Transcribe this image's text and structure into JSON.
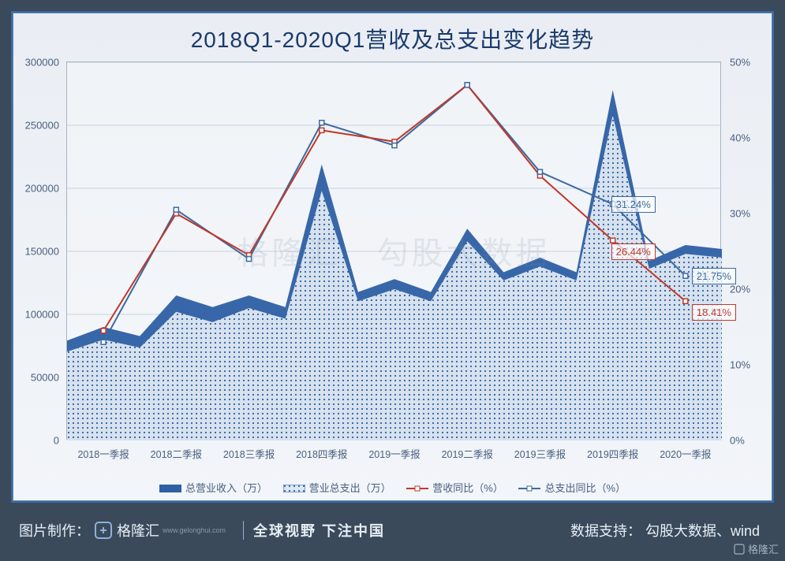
{
  "title": "2018Q1-2020Q1营收及总支出变化趋势",
  "chart": {
    "type": "combo-area-line",
    "background_color": "#eaeef4",
    "border_color": "#3a6aa0",
    "plot_border_color": "#a8b4c4",
    "grid_color": "#c8d2e0",
    "categories": [
      "2018一季报",
      "2018二季报",
      "2018三季报",
      "2018四季报",
      "2019一季报",
      "2019二季报",
      "2019三季报",
      "2019四季报",
      "2020一季报"
    ],
    "y_left": {
      "min": 0,
      "max": 300000,
      "step": 50000,
      "ticks": [
        "0",
        "50000",
        "100000",
        "150000",
        "200000",
        "250000",
        "300000"
      ]
    },
    "y_right": {
      "min": 0,
      "max": 0.5,
      "step": 0.1,
      "ticks": [
        "0%",
        "10%",
        "20%",
        "30%",
        "40%",
        "50%"
      ]
    },
    "series": {
      "revenue_area": {
        "label": "总营业收入（万）",
        "color": "#2d5fa4",
        "fill": "solid",
        "axis": "left",
        "values": [
          90000,
          115000,
          115000,
          219000,
          128000,
          168000,
          145000,
          278000,
          155000
        ]
      },
      "expense_area": {
        "label": "营业总支出（万）",
        "color": "#2d5fa4",
        "fill": "dotted",
        "axis": "left",
        "values": [
          80000,
          102000,
          105000,
          198000,
          120000,
          158000,
          138000,
          258000,
          148000
        ]
      },
      "revenue_yoy": {
        "label": "营收同比（%）",
        "color": "#c0392b",
        "axis": "right",
        "line_width": 2,
        "values": [
          0.145,
          0.3,
          0.245,
          0.41,
          0.395,
          0.47,
          0.35,
          0.2644,
          0.1841
        ]
      },
      "expense_yoy": {
        "label": "总支出同比（%）",
        "color": "#3a6aa0",
        "axis": "right",
        "line_width": 2,
        "values": [
          0.13,
          0.305,
          0.24,
          0.42,
          0.39,
          0.47,
          0.355,
          0.3124,
          0.2175
        ]
      }
    },
    "labels": [
      {
        "series": "expense_yoy",
        "i": 7,
        "text": "31.24%",
        "color": "#3a6aa0"
      },
      {
        "series": "revenue_yoy",
        "i": 7,
        "text": "26.44%",
        "color": "#c0392b"
      },
      {
        "series": "expense_yoy",
        "i": 8,
        "text": "21.75%",
        "color": "#3a6aa0"
      },
      {
        "series": "revenue_yoy",
        "i": 8,
        "text": "18.41%",
        "color": "#c0392b"
      }
    ],
    "title_fontsize": 28,
    "title_color": "#1a3a6a",
    "axis_fontsize": 13,
    "axis_color": "#4a6080"
  },
  "watermark_left": "格隆汇",
  "watermark_right": "勾股大数据",
  "footer": {
    "make_label": "图片制作：",
    "logo_text": "格隆汇",
    "slogan": "全球视野 下注中国",
    "support_label": "数据支持：",
    "support_value": "勾股大数据、wind"
  },
  "corner_watermark": "格隆汇",
  "logo_url": "www.gelonghui.com"
}
